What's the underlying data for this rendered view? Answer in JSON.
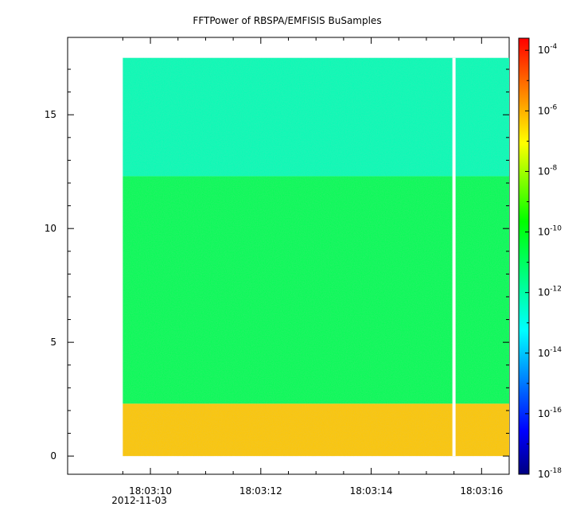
{
  "chart_data": {
    "type": "heatmap",
    "title": "FFTPower of RBSPA/EMFISIS  BuSamples",
    "xlabel": "",
    "ylabel": "",
    "x_ticks": [
      {
        "t": 10,
        "label": "18:03:10",
        "sublabel": "2012-11-03"
      },
      {
        "t": 12,
        "label": "18:03:12",
        "sublabel": ""
      },
      {
        "t": 14,
        "label": "18:03:14",
        "sublabel": ""
      },
      {
        "t": 16,
        "label": "18:03:16",
        "sublabel": ""
      }
    ],
    "x_minor_ticks": [
      9.5,
      10.5,
      11,
      11.5,
      12.5,
      13,
      13.5,
      14.5,
      15,
      15.5
    ],
    "xlim": [
      8.5,
      16.5
    ],
    "data_x_range": [
      9.5,
      16.5
    ],
    "gap_at_x": 15.5,
    "y_ticks": [
      0,
      5,
      10,
      15
    ],
    "ylim": [
      -0.8,
      18.4
    ],
    "data_y_range": [
      0,
      17.5
    ],
    "colorbar": {
      "scale": "log",
      "range_exponent": [
        -18,
        -3.6
      ],
      "ticks": [
        {
          "base": "10",
          "exp": "-4"
        },
        {
          "base": "10",
          "exp": "-6"
        },
        {
          "base": "10",
          "exp": "-8"
        },
        {
          "base": "10",
          "exp": "-10"
        },
        {
          "base": "10",
          "exp": "-12"
        },
        {
          "base": "10",
          "exp": "-14"
        },
        {
          "base": "10",
          "exp": "-16"
        },
        {
          "base": "10",
          "exp": "-18"
        }
      ],
      "colors": [
        "#000080",
        "#0000ff",
        "#00ffff",
        "#00ff00",
        "#ffff00",
        "#ff0000"
      ]
    },
    "bands": [
      {
        "y_from": 12.3,
        "y_to": 17.5,
        "log_power": -12.2
      },
      {
        "y_from": 2.3,
        "y_to": 12.3,
        "log_power": -10.8
      },
      {
        "y_from": 0,
        "y_to": 2.3,
        "log_power": -6.3
      }
    ],
    "grid": false
  }
}
